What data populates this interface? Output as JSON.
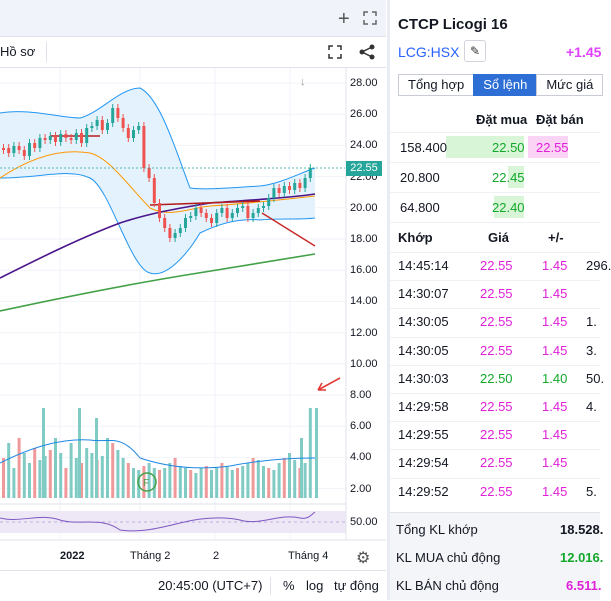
{
  "chart_header": {
    "menu_label": "Hồ sơ",
    "add_icon": "plus-icon",
    "expand_icon": "expand-icon",
    "fullscreen_icon": "fullscreen-icon",
    "share_icon": "share-icon"
  },
  "price_axis": [
    "28.00",
    "26.00",
    "24.00",
    "22.00",
    "20.00",
    "18.00",
    "16.00",
    "14.00",
    "12.00",
    "10.00",
    "8.00",
    "6.00",
    "4.00",
    "2.00"
  ],
  "last_price_label": "22.55",
  "rsi_label": "50.00",
  "time_axis": [
    "2022",
    "Tháng 2",
    "2",
    "Tháng 4"
  ],
  "event_marker": "F",
  "bottom_bar": {
    "time": "20:45:00 (UTC+7)",
    "percent": "%",
    "log": "log",
    "auto": "tự động"
  },
  "chart_data": {
    "type": "candlestick",
    "price_range": [
      0,
      28
    ],
    "last_price": 22.55,
    "indicators": [
      "Bollinger Bands",
      "moving averages",
      "volume",
      "RSI"
    ],
    "volume_ma_visible": true
  },
  "panel": {
    "title": "CTCP Licogi 16",
    "ticker": "LCG:HSX",
    "change": "+1.45",
    "tabs": [
      {
        "label": "Tổng hợp",
        "active": false
      },
      {
        "label": "Sổ lệnh",
        "active": true
      },
      {
        "label": "Mức giá",
        "active": false
      }
    ],
    "orderbook_headers": {
      "bid": "Đặt mua",
      "ask": "Đặt bán"
    },
    "orderbook": [
      {
        "vol": "158.400",
        "bid": "22.50",
        "ask": "22.55"
      },
      {
        "vol": "20.800",
        "bid": "22.45",
        "ask": ""
      },
      {
        "vol": "64.800",
        "bid": "22.40",
        "ask": ""
      }
    ],
    "trades_headers": {
      "time": "Khớp",
      "price": "Giá",
      "change": "+/-"
    },
    "trades": [
      {
        "time": "14:45:14",
        "price": "22.55",
        "change": "1.45",
        "vol": "296.",
        "color": "pink"
      },
      {
        "time": "14:30:07",
        "price": "22.55",
        "change": "1.45",
        "vol": "",
        "color": "pink"
      },
      {
        "time": "14:30:05",
        "price": "22.55",
        "change": "1.45",
        "vol": "1.",
        "color": "pink"
      },
      {
        "time": "14:30:05",
        "price": "22.55",
        "change": "1.45",
        "vol": "3.",
        "color": "pink"
      },
      {
        "time": "14:30:03",
        "price": "22.50",
        "change": "1.40",
        "vol": "50.",
        "color": "green"
      },
      {
        "time": "14:29:58",
        "price": "22.55",
        "change": "1.45",
        "vol": "4.",
        "color": "pink"
      },
      {
        "time": "14:29:55",
        "price": "22.55",
        "change": "1.45",
        "vol": "",
        "color": "pink"
      },
      {
        "time": "14:29:54",
        "price": "22.55",
        "change": "1.45",
        "vol": "",
        "color": "pink"
      },
      {
        "time": "14:29:52",
        "price": "22.55",
        "change": "1.45",
        "vol": "5.",
        "color": "pink"
      }
    ],
    "summary": [
      {
        "label": "Tổng KL khớp",
        "value": "18.528.",
        "color": "dark"
      },
      {
        "label": "KL MUA chủ động",
        "value": "12.016.",
        "color": "green"
      },
      {
        "label": "KL BÁN chủ động",
        "value": "6.511.",
        "color": "pink"
      }
    ]
  }
}
